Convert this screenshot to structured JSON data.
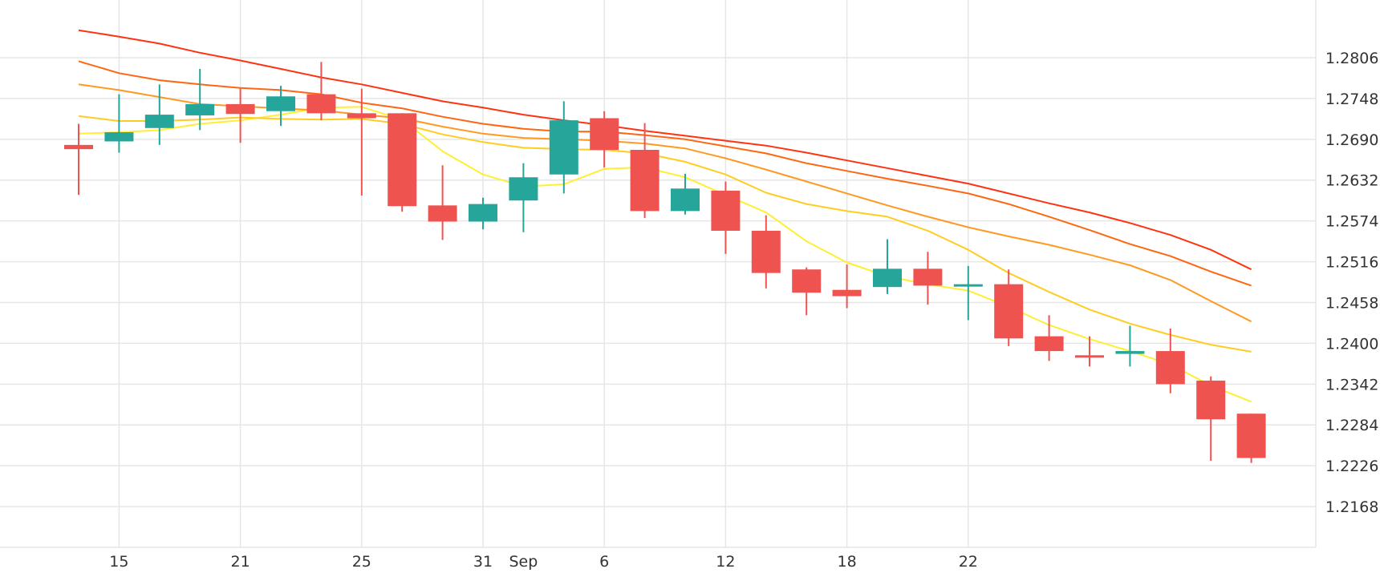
{
  "chart_data": {
    "type": "candlestick",
    "grid": true,
    "axis_position": "right",
    "ylim": [
      1.211,
      1.2888
    ],
    "y_ticks": [
      "1.2806",
      "1.2748",
      "1.2690",
      "1.2632",
      "1.2574",
      "1.2516",
      "1.2458",
      "1.2400",
      "1.2342",
      "1.2284",
      "1.2226",
      "1.2168"
    ],
    "x_ticks": [
      {
        "label": "15",
        "date": "Aug 15"
      },
      {
        "label": "21",
        "date": "Aug 21"
      },
      {
        "label": "25",
        "date": "Aug 25"
      },
      {
        "label": "31",
        "date": "Aug 31"
      },
      {
        "label": "Sep",
        "date": "Sep 1"
      },
      {
        "label": "6",
        "date": "Sep 6"
      },
      {
        "label": "12",
        "date": "Sep 12"
      },
      {
        "label": "18",
        "date": "Sep 18"
      },
      {
        "label": "22",
        "date": "Sep 22"
      }
    ],
    "x_tick_index": [
      1,
      4,
      7,
      10,
      11,
      13,
      16,
      19,
      22
    ],
    "candles": [
      {
        "date": "Aug 11",
        "open": 1.2682,
        "high": 1.2712,
        "low": 1.2611,
        "close": 1.2676
      },
      {
        "date": "Aug 14",
        "open": 1.2687,
        "high": 1.2754,
        "low": 1.2671,
        "close": 1.27
      },
      {
        "date": "Aug 15",
        "open": 1.2706,
        "high": 1.2768,
        "low": 1.2682,
        "close": 1.2725
      },
      {
        "date": "Aug 16",
        "open": 1.2724,
        "high": 1.279,
        "low": 1.2703,
        "close": 1.274
      },
      {
        "date": "Aug 17",
        "open": 1.274,
        "high": 1.2762,
        "low": 1.2685,
        "close": 1.2726
      },
      {
        "date": "Aug 18",
        "open": 1.273,
        "high": 1.2766,
        "low": 1.2709,
        "close": 1.2751
      },
      {
        "date": "Aug 21",
        "open": 1.2754,
        "high": 1.28,
        "low": 1.2717,
        "close": 1.2727
      },
      {
        "date": "Aug 22",
        "open": 1.2727,
        "high": 1.2762,
        "low": 1.261,
        "close": 1.272
      },
      {
        "date": "Aug 23",
        "open": 1.2727,
        "high": 1.2727,
        "low": 1.2587,
        "close": 1.2595
      },
      {
        "date": "Aug 24",
        "open": 1.2596,
        "high": 1.2653,
        "low": 1.2547,
        "close": 1.2573
      },
      {
        "date": "Aug 25",
        "open": 1.2573,
        "high": 1.2607,
        "low": 1.2562,
        "close": 1.2598
      },
      {
        "date": "Aug 28",
        "open": 1.2603,
        "high": 1.2656,
        "low": 1.2558,
        "close": 1.2636
      },
      {
        "date": "Aug 29",
        "open": 1.264,
        "high": 1.2744,
        "low": 1.2613,
        "close": 1.2717
      },
      {
        "date": "Aug 30",
        "open": 1.272,
        "high": 1.273,
        "low": 1.265,
        "close": 1.2675
      },
      {
        "date": "Aug 31",
        "open": 1.2675,
        "high": 1.2713,
        "low": 1.2578,
        "close": 1.2588
      },
      {
        "date": "Sep 1",
        "open": 1.2588,
        "high": 1.2641,
        "low": 1.2583,
        "close": 1.262
      },
      {
        "date": "Sep 4",
        "open": 1.2617,
        "high": 1.263,
        "low": 1.2527,
        "close": 1.256
      },
      {
        "date": "Sep 5",
        "open": 1.256,
        "high": 1.2582,
        "low": 1.2478,
        "close": 1.25
      },
      {
        "date": "Sep 6",
        "open": 1.2505,
        "high": 1.2508,
        "low": 1.244,
        "close": 1.2472
      },
      {
        "date": "Sep 7",
        "open": 1.2476,
        "high": 1.2512,
        "low": 1.245,
        "close": 1.2467
      },
      {
        "date": "Sep 8",
        "open": 1.248,
        "high": 1.2548,
        "low": 1.247,
        "close": 1.2506
      },
      {
        "date": "Sep 11",
        "open": 1.2506,
        "high": 1.253,
        "low": 1.2455,
        "close": 1.2482
      },
      {
        "date": "Sep 12",
        "open": 1.2482,
        "high": 1.251,
        "low": 1.2433,
        "close": 1.2484
      },
      {
        "date": "Sep 13",
        "open": 1.2484,
        "high": 1.2505,
        "low": 1.2396,
        "close": 1.2407
      },
      {
        "date": "Sep 14",
        "open": 1.241,
        "high": 1.244,
        "low": 1.2375,
        "close": 1.2389
      },
      {
        "date": "Sep 15",
        "open": 1.2383,
        "high": 1.241,
        "low": 1.2367,
        "close": 1.238
      },
      {
        "date": "Sep 18",
        "open": 1.2385,
        "high": 1.2425,
        "low": 1.2367,
        "close": 1.2389
      },
      {
        "date": "Sep 19",
        "open": 1.2389,
        "high": 1.2421,
        "low": 1.2329,
        "close": 1.2342
      },
      {
        "date": "Sep 20",
        "open": 1.2347,
        "high": 1.2353,
        "low": 1.2233,
        "close": 1.2292
      },
      {
        "date": "Sep 21",
        "open": 1.23,
        "high": 1.23,
        "low": 1.223,
        "close": 1.2237
      }
    ],
    "ma_series": [
      {
        "color": "#ffee33",
        "values": [
          1.2698,
          1.27,
          1.2703,
          1.2712,
          1.2717,
          1.2725,
          1.2735,
          1.2736,
          1.2718,
          1.2673,
          1.264,
          1.2623,
          1.2626,
          1.2648,
          1.265,
          1.2636,
          1.2611,
          1.2586,
          1.2545,
          1.2515,
          1.2495,
          1.2484,
          1.2475,
          1.2452,
          1.2426,
          1.2406,
          1.2389,
          1.237,
          1.234,
          1.2317
        ]
      },
      {
        "color": "#ffcc22",
        "values": [
          1.2723,
          1.2716,
          1.2716,
          1.2718,
          1.2721,
          1.2719,
          1.2718,
          1.2719,
          1.2712,
          1.2697,
          1.2686,
          1.2678,
          1.2676,
          1.2675,
          1.267,
          1.2658,
          1.264,
          1.2614,
          1.2598,
          1.2588,
          1.258,
          1.256,
          1.2533,
          1.25,
          1.2473,
          1.2448,
          1.2428,
          1.2412,
          1.2398,
          1.2388
        ]
      },
      {
        "color": "#ff9922",
        "values": [
          1.2768,
          1.276,
          1.275,
          1.274,
          1.2737,
          1.2734,
          1.2731,
          1.2725,
          1.272,
          1.2708,
          1.2698,
          1.2692,
          1.269,
          1.2688,
          1.2684,
          1.2677,
          1.2663,
          1.2647,
          1.263,
          1.2613,
          1.2596,
          1.258,
          1.2565,
          1.2552,
          1.254,
          1.2526,
          1.2511,
          1.249,
          1.246,
          1.2431
        ]
      },
      {
        "color": "#ff6611",
        "values": [
          1.2801,
          1.2784,
          1.2774,
          1.2768,
          1.2763,
          1.276,
          1.2754,
          1.2742,
          1.2734,
          1.2722,
          1.2712,
          1.2705,
          1.2701,
          1.2701,
          1.2696,
          1.269,
          1.268,
          1.267,
          1.2656,
          1.2645,
          1.2634,
          1.2624,
          1.2613,
          1.2598,
          1.258,
          1.2561,
          1.2541,
          1.2524,
          1.2502,
          1.2482
        ]
      },
      {
        "color": "#ff3311",
        "values": [
          1.2845,
          1.2836,
          1.2826,
          1.2813,
          1.2802,
          1.279,
          1.2778,
          1.2768,
          1.2756,
          1.2744,
          1.2735,
          1.2725,
          1.2717,
          1.271,
          1.2702,
          1.2695,
          1.2688,
          1.2681,
          1.2671,
          1.266,
          1.2649,
          1.2638,
          1.2627,
          1.2613,
          1.2599,
          1.2586,
          1.2571,
          1.2554,
          1.2533,
          1.2505
        ]
      }
    ],
    "colors": {
      "up": "#26a69a",
      "down": "#ef5350",
      "grid": "#e6e6e6",
      "axis_text": "#333333"
    }
  }
}
